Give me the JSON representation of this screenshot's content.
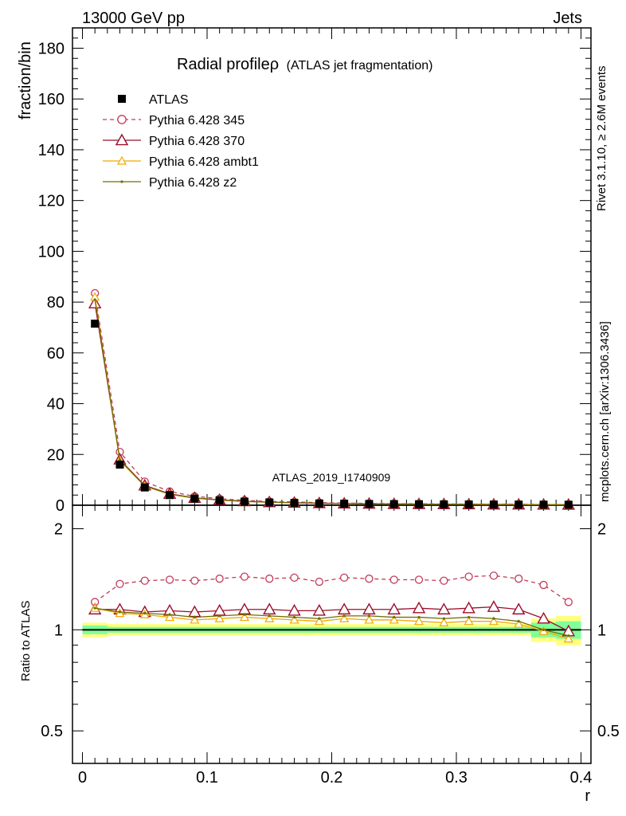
{
  "header": {
    "energy_label": "13000 GeV pp",
    "category_label": "Jets"
  },
  "side_labels": {
    "rivet": "Rivet 3.1.10, ≥ 2.6M events",
    "mcplots": "mcplots.cern.ch [arXiv:1306.3436]"
  },
  "chart_data": {
    "type": "line",
    "title": "Radial profileρ",
    "subtitle": "(ATLAS jet fragmentation)",
    "watermark": "ATLAS_2019_I1740909",
    "xlabel": "r",
    "ylabel": "fraction/bin",
    "ratio_ylabel": "Ratio to ATLAS",
    "xlim": [
      -0.008,
      0.408
    ],
    "ylim": [
      0,
      188
    ],
    "ratio_ylim": [
      0.4,
      2.35
    ],
    "ratio_scale": "log",
    "x_ticks": [
      "0",
      "0.1",
      "0.2",
      "0.3",
      "0.4"
    ],
    "y_ticks": [
      "0",
      "20",
      "40",
      "60",
      "80",
      "100",
      "120",
      "140",
      "160",
      "180"
    ],
    "ratio_y_ticks": [
      "0.5",
      "1",
      "2"
    ],
    "legend_position": "top-left",
    "x": [
      0.01,
      0.03,
      0.05,
      0.07,
      0.09,
      0.11,
      0.13,
      0.15,
      0.17,
      0.19,
      0.21,
      0.23,
      0.25,
      0.27,
      0.29,
      0.31,
      0.33,
      0.35,
      0.37,
      0.39
    ],
    "data": {
      "name": "ATLAS",
      "values": [
        71.5,
        16.0,
        7.0,
        4.0,
        2.6,
        1.9,
        1.4,
        1.1,
        0.9,
        0.7,
        0.6,
        0.5,
        0.45,
        0.4,
        0.35,
        0.3,
        0.28,
        0.25,
        0.22,
        0.2
      ]
    },
    "series": [
      {
        "name": "Pythia 6.428 345",
        "color": "#c23b5a",
        "style": "dashed-open-circle",
        "values": [
          83.5,
          21.0,
          9.3,
          5.4,
          3.5,
          2.6,
          1.9,
          1.5,
          1.3,
          1.0,
          0.85,
          0.7,
          0.6,
          0.55,
          0.5,
          0.45,
          0.4,
          0.35,
          0.3,
          0.25
        ],
        "ratio": [
          1.21,
          1.37,
          1.4,
          1.41,
          1.4,
          1.42,
          1.44,
          1.42,
          1.43,
          1.39,
          1.43,
          1.42,
          1.41,
          1.41,
          1.4,
          1.44,
          1.45,
          1.42,
          1.36,
          1.21
        ]
      },
      {
        "name": "Pythia 6.428 370",
        "color": "#9b0e2c",
        "style": "solid-open-triangle",
        "values": [
          79.5,
          18.0,
          7.8,
          4.5,
          2.9,
          2.1,
          1.6,
          1.2,
          1.0,
          0.8,
          0.7,
          0.6,
          0.5,
          0.45,
          0.4,
          0.35,
          0.3,
          0.28,
          0.25,
          0.2
        ],
        "ratio": [
          1.15,
          1.15,
          1.13,
          1.14,
          1.13,
          1.14,
          1.15,
          1.15,
          1.14,
          1.14,
          1.15,
          1.15,
          1.15,
          1.16,
          1.15,
          1.16,
          1.17,
          1.15,
          1.08,
          0.99
        ]
      },
      {
        "name": "Pythia 6.428 ambt1",
        "color": "#f2a900",
        "style": "solid-open-triangle-small",
        "values": [
          82.0,
          17.5,
          7.5,
          4.3,
          2.8,
          2.0,
          1.5,
          1.2,
          0.95,
          0.75,
          0.65,
          0.55,
          0.48,
          0.43,
          0.38,
          0.33,
          0.3,
          0.26,
          0.22,
          0.18
        ],
        "ratio": [
          1.16,
          1.12,
          1.11,
          1.09,
          1.07,
          1.08,
          1.09,
          1.08,
          1.07,
          1.06,
          1.08,
          1.07,
          1.07,
          1.06,
          1.05,
          1.06,
          1.06,
          1.04,
          0.99,
          0.94
        ]
      },
      {
        "name": "Pythia 6.428 z2",
        "color": "#6f6f00",
        "style": "solid-dot",
        "values": [
          81.0,
          17.8,
          7.6,
          4.35,
          2.8,
          2.05,
          1.5,
          1.2,
          0.97,
          0.76,
          0.66,
          0.56,
          0.49,
          0.44,
          0.39,
          0.34,
          0.31,
          0.27,
          0.21,
          0.18
        ],
        "ratio": [
          1.16,
          1.13,
          1.12,
          1.11,
          1.09,
          1.1,
          1.11,
          1.1,
          1.09,
          1.08,
          1.1,
          1.1,
          1.09,
          1.09,
          1.08,
          1.09,
          1.08,
          1.06,
          1.0,
          0.96
        ]
      }
    ],
    "uncertainty": {
      "yellow_half_width": [
        0.05,
        0.04,
        0.04,
        0.04,
        0.04,
        0.04,
        0.04,
        0.04,
        0.04,
        0.04,
        0.04,
        0.04,
        0.04,
        0.04,
        0.04,
        0.04,
        0.04,
        0.04,
        0.08,
        0.1
      ],
      "green_half_width": [
        0.03,
        0.02,
        0.02,
        0.02,
        0.02,
        0.02,
        0.02,
        0.02,
        0.02,
        0.02,
        0.02,
        0.02,
        0.02,
        0.02,
        0.02,
        0.02,
        0.02,
        0.02,
        0.05,
        0.06
      ],
      "yellow_color": "#ffff80",
      "green_color": "#80ff9a"
    }
  }
}
